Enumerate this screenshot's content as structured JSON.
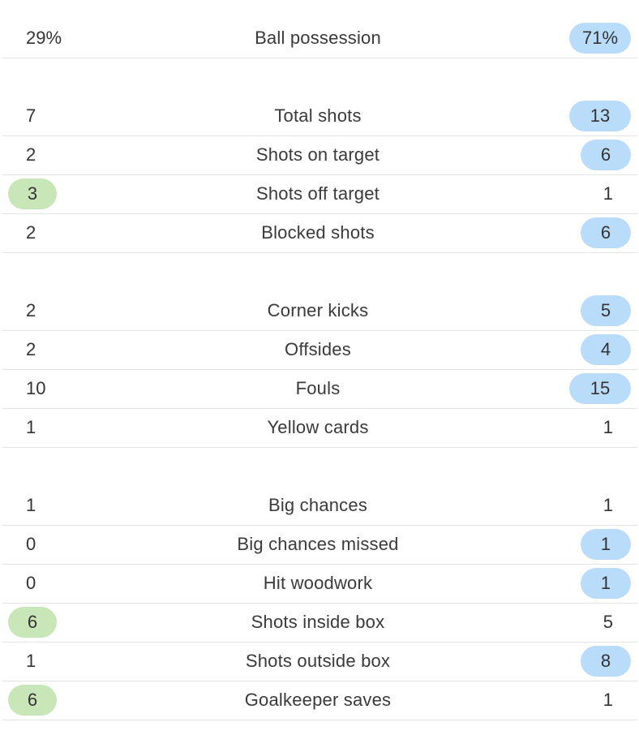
{
  "colors": {
    "home_highlight": "#c9e6b8",
    "away_highlight": "#b9dcfa",
    "divider": "#e4e4e4",
    "text": "#333333"
  },
  "groups": [
    {
      "rows": [
        {
          "label": "Ball possession",
          "home": "29%",
          "away": "71%",
          "highlight": "away"
        }
      ]
    },
    {
      "rows": [
        {
          "label": "Total shots",
          "home": "7",
          "away": "13",
          "highlight": "away"
        },
        {
          "label": "Shots on target",
          "home": "2",
          "away": "6",
          "highlight": "away"
        },
        {
          "label": "Shots off target",
          "home": "3",
          "away": "1",
          "highlight": "home"
        },
        {
          "label": "Blocked shots",
          "home": "2",
          "away": "6",
          "highlight": "away"
        }
      ]
    },
    {
      "rows": [
        {
          "label": "Corner kicks",
          "home": "2",
          "away": "5",
          "highlight": "away"
        },
        {
          "label": "Offsides",
          "home": "2",
          "away": "4",
          "highlight": "away"
        },
        {
          "label": "Fouls",
          "home": "10",
          "away": "15",
          "highlight": "away"
        },
        {
          "label": "Yellow cards",
          "home": "1",
          "away": "1",
          "highlight": "none"
        }
      ]
    },
    {
      "rows": [
        {
          "label": "Big chances",
          "home": "1",
          "away": "1",
          "highlight": "none"
        },
        {
          "label": "Big chances missed",
          "home": "0",
          "away": "1",
          "highlight": "away"
        },
        {
          "label": "Hit woodwork",
          "home": "0",
          "away": "1",
          "highlight": "away"
        },
        {
          "label": "Shots inside box",
          "home": "6",
          "away": "5",
          "highlight": "home"
        },
        {
          "label": "Shots outside box",
          "home": "1",
          "away": "8",
          "highlight": "away"
        },
        {
          "label": "Goalkeeper saves",
          "home": "6",
          "away": "1",
          "highlight": "home"
        }
      ]
    }
  ]
}
